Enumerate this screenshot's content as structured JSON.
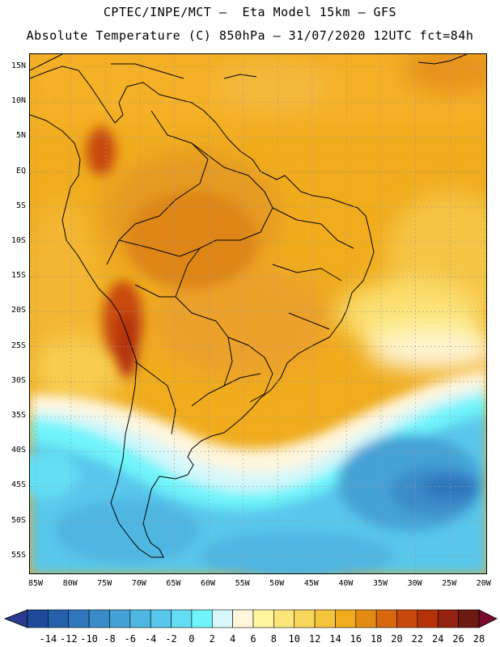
{
  "header": {
    "title_line1": "CPTEC/INPE/MCT –  Eta Model 15km – GFS",
    "title_line2": "Absolute Temperature (C) 850hPa – 31/07/2020 12UTC fct=84h"
  },
  "map": {
    "lat_labels": [
      "15N",
      "10N",
      "5N",
      "EQ",
      "5S",
      "10S",
      "15S",
      "20S",
      "25S",
      "30S",
      "35S",
      "40S",
      "45S",
      "50S",
      "55S"
    ],
    "lon_labels": [
      "85W",
      "80W",
      "75W",
      "70W",
      "65W",
      "60W",
      "55W",
      "50W",
      "45W",
      "40W",
      "35W",
      "30W",
      "25W",
      "20W"
    ],
    "grid_color": "#999999"
  },
  "colorbar": {
    "labels": [
      "-14",
      "-12",
      "-10",
      "-8",
      "-6",
      "-4",
      "-2",
      "0",
      "2",
      "4",
      "6",
      "8",
      "10",
      "12",
      "14",
      "16",
      "18",
      "20",
      "22",
      "24",
      "26",
      "28"
    ],
    "colors": [
      "#1d4a9a",
      "#2660ac",
      "#2f76bd",
      "#3a8cc9",
      "#45a2d6",
      "#4fb6e2",
      "#58c8ec",
      "#63def4",
      "#6ff4fb",
      "#d6f8fb",
      "#fff6dc",
      "#fef59c",
      "#fce67a",
      "#f9d75b",
      "#f5c33c",
      "#f0ac1d",
      "#e28a12",
      "#d8670e",
      "#c9480c",
      "#b3320a",
      "#932210",
      "#6d1a10"
    ],
    "low_arrow_color": "#2a3b8f",
    "high_arrow_color": "#7a0a2a"
  }
}
